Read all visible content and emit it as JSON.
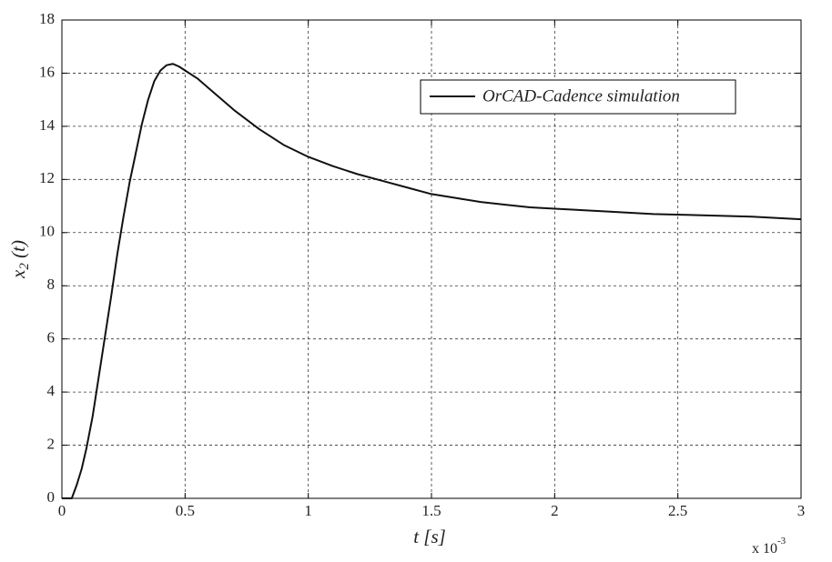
{
  "chart_data": {
    "type": "line",
    "xlabel": "t [s]",
    "ylabel": [
      "x",
      "2",
      " (t)"
    ],
    "x_multiplier": [
      "x 10",
      "-3"
    ],
    "x": [
      0,
      0.04,
      0.06,
      0.08,
      0.1,
      0.125,
      0.15,
      0.175,
      0.2,
      0.225,
      0.25,
      0.275,
      0.3,
      0.325,
      0.35,
      0.375,
      0.4,
      0.425,
      0.45,
      0.475,
      0.5,
      0.55,
      0.6,
      0.7,
      0.8,
      0.9,
      1.0,
      1.1,
      1.2,
      1.3,
      1.4,
      1.5,
      1.6,
      1.7,
      1.8,
      1.9,
      2.0,
      2.2,
      2.4,
      2.6,
      2.8,
      3.0
    ],
    "series": [
      {
        "name": "OrCAD-Cadence simulation",
        "color": "#111111",
        "values": [
          0,
          0,
          0.5,
          1.1,
          1.9,
          3.1,
          4.6,
          6.1,
          7.6,
          9.2,
          10.6,
          11.9,
          13.0,
          14.1,
          15.0,
          15.7,
          16.1,
          16.3,
          16.35,
          16.25,
          16.1,
          15.8,
          15.4,
          14.6,
          13.9,
          13.3,
          12.85,
          12.5,
          12.2,
          11.95,
          11.7,
          11.45,
          11.3,
          11.15,
          11.05,
          10.95,
          10.9,
          10.8,
          10.7,
          10.65,
          10.6,
          10.5
        ]
      }
    ],
    "xlim": [
      0,
      3
    ],
    "xticks": [
      0,
      0.5,
      1,
      1.5,
      2,
      2.5,
      3
    ],
    "ylim": [
      0,
      18
    ],
    "yticks": [
      0,
      2,
      4,
      6,
      8,
      10,
      12,
      14,
      16,
      18
    ],
    "grid": true
  }
}
